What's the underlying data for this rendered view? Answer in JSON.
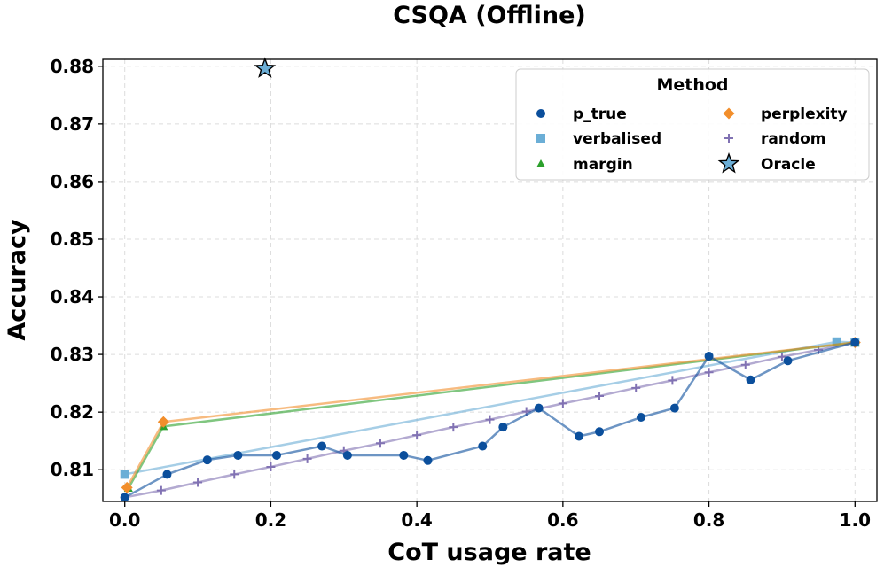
{
  "chart_data": {
    "type": "line",
    "title": "CSQA (Offline)",
    "xlabel": "CoT usage rate",
    "ylabel": "Accuracy",
    "xlim": [
      -0.03,
      1.03
    ],
    "ylim": [
      0.8045,
      0.8812
    ],
    "xticks": [
      0.0,
      0.2,
      0.4,
      0.6,
      0.8,
      1.0
    ],
    "xtick_labels": [
      "0.0",
      "0.2",
      "0.4",
      "0.6",
      "0.8",
      "1.0"
    ],
    "yticks": [
      0.81,
      0.82,
      0.83,
      0.84,
      0.85,
      0.86,
      0.87,
      0.88
    ],
    "ytick_labels": [
      "0.81",
      "0.82",
      "0.83",
      "0.84",
      "0.85",
      "0.86",
      "0.87",
      "0.88"
    ],
    "grid": true,
    "legend": {
      "title": "Method",
      "location": "top-right",
      "entries": [
        "p_true",
        "verbalised",
        "margin",
        "perplexity",
        "random",
        "Oracle"
      ]
    },
    "series": [
      {
        "name": "random",
        "marker": "plus",
        "color": "#8172b3",
        "points": [
          [
            0.0,
            0.8052
          ],
          [
            0.05,
            0.8064
          ],
          [
            0.1,
            0.8078
          ],
          [
            0.15,
            0.8092
          ],
          [
            0.2,
            0.8105
          ],
          [
            0.25,
            0.8119
          ],
          [
            0.3,
            0.8133
          ],
          [
            0.35,
            0.8146
          ],
          [
            0.4,
            0.816
          ],
          [
            0.45,
            0.8174
          ],
          [
            0.5,
            0.8187
          ],
          [
            0.55,
            0.8201
          ],
          [
            0.6,
            0.8215
          ],
          [
            0.65,
            0.8228
          ],
          [
            0.7,
            0.8242
          ],
          [
            0.75,
            0.8255
          ],
          [
            0.8,
            0.8269
          ],
          [
            0.85,
            0.8282
          ],
          [
            0.9,
            0.8296
          ],
          [
            0.95,
            0.8308
          ],
          [
            1.0,
            0.8321
          ]
        ]
      },
      {
        "name": "verbalised",
        "marker": "square",
        "color": "#6baed6",
        "points": [
          [
            0.0,
            0.8092
          ],
          [
            0.975,
            0.8322
          ],
          [
            1.0,
            0.8321
          ]
        ]
      },
      {
        "name": "margin",
        "marker": "triangle",
        "color": "#2ca02c",
        "points": [
          [
            0.005,
            0.8068
          ],
          [
            0.053,
            0.8175
          ],
          [
            1.0,
            0.8321
          ]
        ]
      },
      {
        "name": "perplexity",
        "marker": "diamond",
        "color": "#f28e2b",
        "points": [
          [
            0.003,
            0.8069
          ],
          [
            0.053,
            0.8183
          ],
          [
            1.0,
            0.8321
          ]
        ]
      },
      {
        "name": "p_true",
        "marker": "circle",
        "color": "#0b4f9c",
        "points": [
          [
            0.0,
            0.8052
          ],
          [
            0.058,
            0.8092
          ],
          [
            0.113,
            0.8117
          ],
          [
            0.155,
            0.8125
          ],
          [
            0.208,
            0.8125
          ],
          [
            0.27,
            0.8141
          ],
          [
            0.305,
            0.8125
          ],
          [
            0.382,
            0.8125
          ],
          [
            0.415,
            0.8116
          ],
          [
            0.49,
            0.8141
          ],
          [
            0.518,
            0.8174
          ],
          [
            0.567,
            0.8207
          ],
          [
            0.622,
            0.8158
          ],
          [
            0.65,
            0.8166
          ],
          [
            0.707,
            0.8191
          ],
          [
            0.753,
            0.8207
          ],
          [
            0.8,
            0.8297
          ],
          [
            0.857,
            0.8256
          ],
          [
            0.908,
            0.8289
          ],
          [
            1.0,
            0.8321
          ]
        ]
      },
      {
        "name": "Oracle",
        "marker": "star",
        "color": "#6baed6",
        "points": [
          [
            0.192,
            0.8796
          ]
        ]
      }
    ]
  }
}
